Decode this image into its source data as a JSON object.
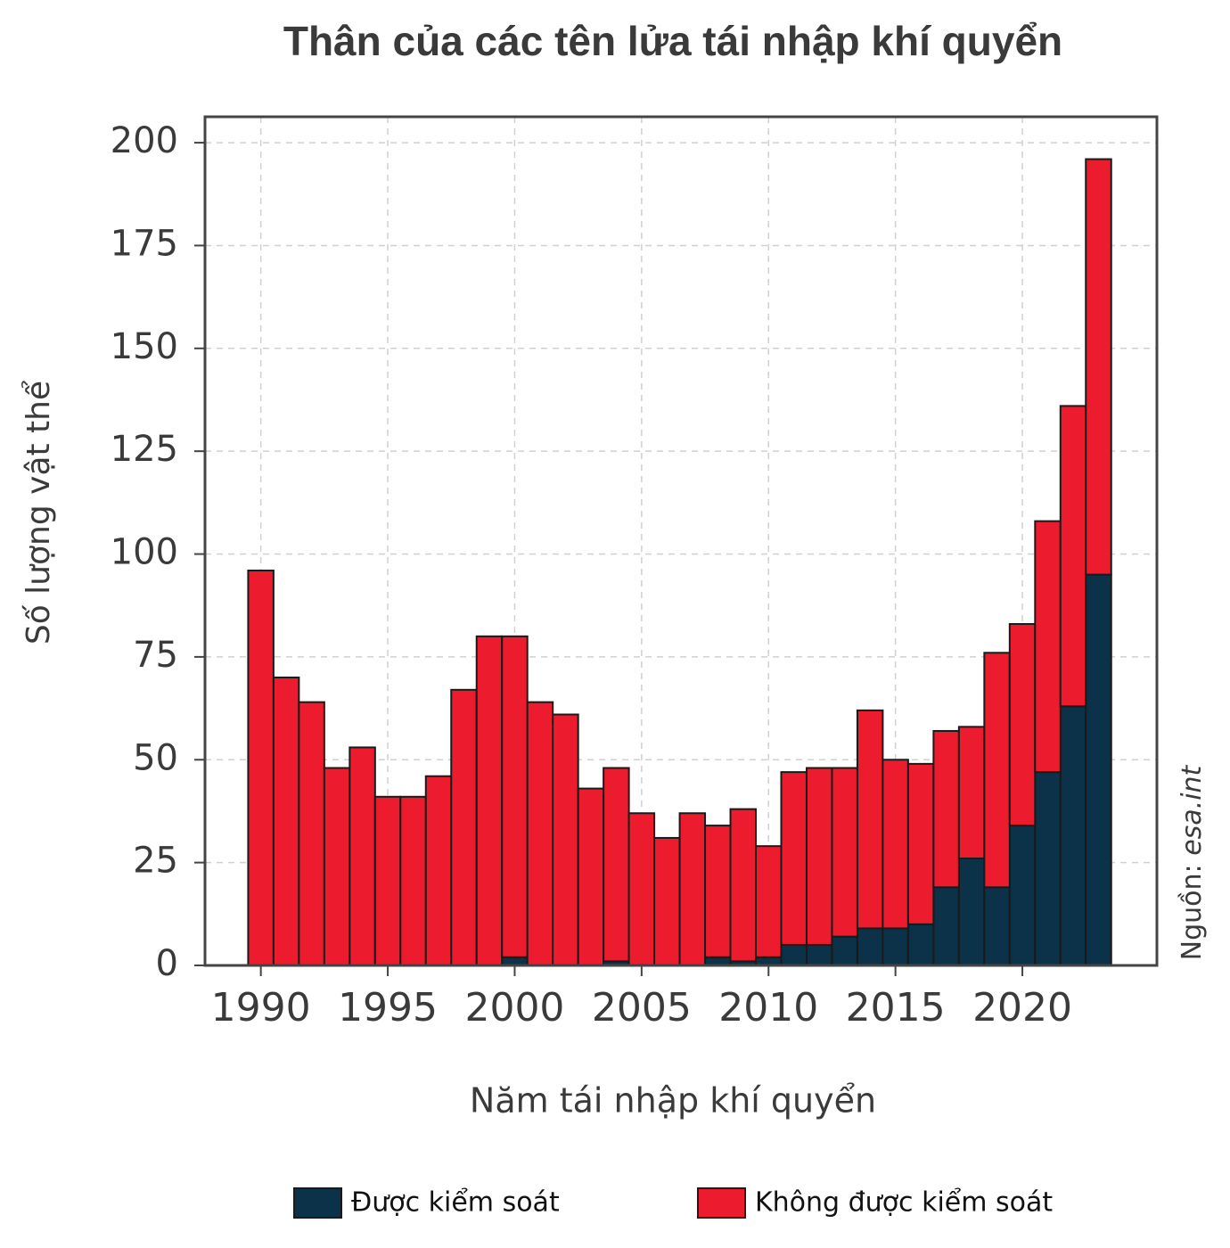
{
  "chart_data": {
    "type": "stacked_bar",
    "title": "Thân của các tên lửa tái nhập khí quyển",
    "x_label": "Năm tái nhập khí quyển",
    "y_label": "Số lượng vật thể",
    "source_label": "Nguồn:",
    "source": "esa.int",
    "x": [
      1990,
      1991,
      1992,
      1993,
      1994,
      1995,
      1996,
      1997,
      1998,
      1999,
      2000,
      2001,
      2002,
      2003,
      2004,
      2005,
      2006,
      2007,
      2008,
      2009,
      2010,
      2011,
      2012,
      2013,
      2014,
      2015,
      2016,
      2017,
      2018,
      2019,
      2020,
      2021,
      2022,
      2023
    ],
    "series": [
      {
        "name": "Được kiểm soát",
        "color": "#0c3249",
        "values": [
          0,
          0,
          0,
          0,
          0,
          0,
          0,
          0,
          0,
          0,
          2,
          0,
          0,
          0,
          1,
          0,
          0,
          0,
          2,
          1,
          2,
          5,
          5,
          7,
          9,
          9,
          10,
          19,
          26,
          19,
          34,
          47,
          63,
          95
        ]
      },
      {
        "name": "Không được kiểm soát",
        "color": "#ec1c2e",
        "values": [
          96,
          70,
          64,
          48,
          53,
          41,
          41,
          46,
          67,
          80,
          78,
          64,
          61,
          43,
          47,
          37,
          31,
          37,
          32,
          37,
          27,
          42,
          43,
          41,
          53,
          41,
          39,
          38,
          32,
          57,
          49,
          61,
          73,
          101
        ]
      }
    ],
    "xlim": [
      1987.8,
      2025.3
    ],
    "xticks": [
      1990,
      1995,
      2000,
      2005,
      2010,
      2015,
      2020
    ],
    "ylim": [
      0,
      206.3
    ],
    "yticks": [
      0,
      25,
      50,
      75,
      100,
      125,
      150,
      175,
      200
    ],
    "grid": true,
    "legend": "bottom"
  }
}
